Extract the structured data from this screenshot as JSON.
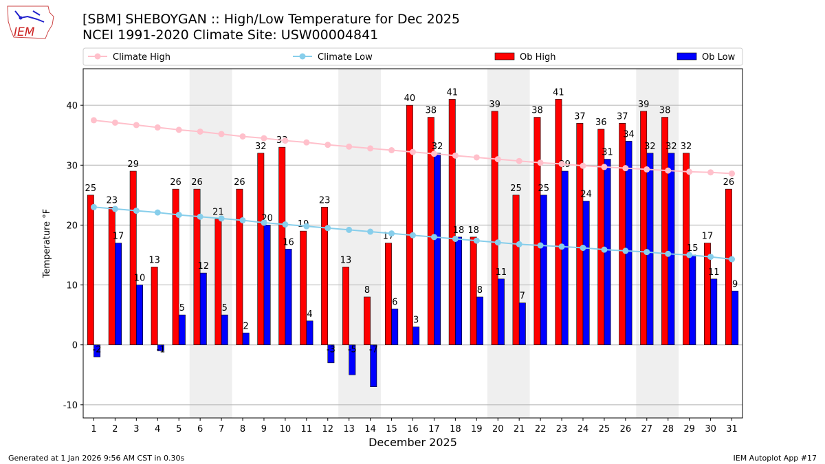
{
  "header": {
    "title": "[SBM] SHEBOYGAN :: High/Low Temperature for Dec 2025",
    "subtitle": "NCEI 1991-2020 Climate Site: USW00004841",
    "logo_text": "IEM"
  },
  "footer": {
    "left": "Generated at 1 Jan 2026 9:56 AM CST in 0.30s",
    "right": "IEM Autoplot App #17"
  },
  "chart_data": {
    "type": "bar",
    "xlabel": "December 2025",
    "ylabel": "Temperature °F",
    "xlim": [
      0.5,
      31.5
    ],
    "ylim": [
      -12.2,
      46.1
    ],
    "yticks": [
      -10,
      0,
      10,
      20,
      30,
      40
    ],
    "grid": true,
    "legend_placement": "top",
    "weekend_shading_days": [
      [
        6,
        7
      ],
      [
        13,
        14
      ],
      [
        20,
        21
      ],
      [
        27,
        28
      ]
    ],
    "categories": [
      1,
      2,
      3,
      4,
      5,
      6,
      7,
      8,
      9,
      10,
      11,
      12,
      13,
      14,
      15,
      16,
      17,
      18,
      19,
      20,
      21,
      22,
      23,
      24,
      25,
      26,
      27,
      28,
      29,
      30,
      31
    ],
    "series": [
      {
        "name": "Climate High",
        "kind": "line",
        "color": "#ffc0cb",
        "values": [
          37.5,
          37.1,
          36.7,
          36.3,
          35.9,
          35.6,
          35.2,
          34.8,
          34.5,
          34.1,
          33.8,
          33.4,
          33.1,
          32.8,
          32.5,
          32.2,
          31.9,
          31.6,
          31.3,
          31.0,
          30.7,
          30.4,
          30.2,
          29.9,
          29.7,
          29.5,
          29.3,
          29.1,
          28.9,
          28.8,
          28.6
        ]
      },
      {
        "name": "Climate Low",
        "kind": "line",
        "color": "#87ceeb",
        "values": [
          23.0,
          22.7,
          22.4,
          22.1,
          21.7,
          21.4,
          21.1,
          20.8,
          20.4,
          20.1,
          19.8,
          19.5,
          19.2,
          18.9,
          18.6,
          18.3,
          18.0,
          17.7,
          17.4,
          17.1,
          16.8,
          16.6,
          16.4,
          16.2,
          15.9,
          15.7,
          15.5,
          15.2,
          15.0,
          14.7,
          14.3
        ]
      },
      {
        "name": "Ob High",
        "kind": "bar",
        "color": "#ff0000",
        "values": [
          25,
          23,
          29,
          13,
          26,
          26,
          21,
          26,
          32,
          33,
          19,
          23,
          13,
          8,
          17,
          40,
          38,
          41,
          18,
          39,
          25,
          38,
          41,
          37,
          36,
          37,
          39,
          38,
          32,
          17,
          26
        ]
      },
      {
        "name": "Ob Low",
        "kind": "bar",
        "color": "#0000ff",
        "values": [
          -2,
          17,
          10,
          -1,
          5,
          12,
          5,
          2,
          20,
          16,
          4,
          -3,
          -5,
          -7,
          6,
          3,
          32,
          18,
          8,
          11,
          7,
          25,
          29,
          24,
          31,
          34,
          32,
          32,
          15,
          11,
          9
        ]
      }
    ]
  }
}
